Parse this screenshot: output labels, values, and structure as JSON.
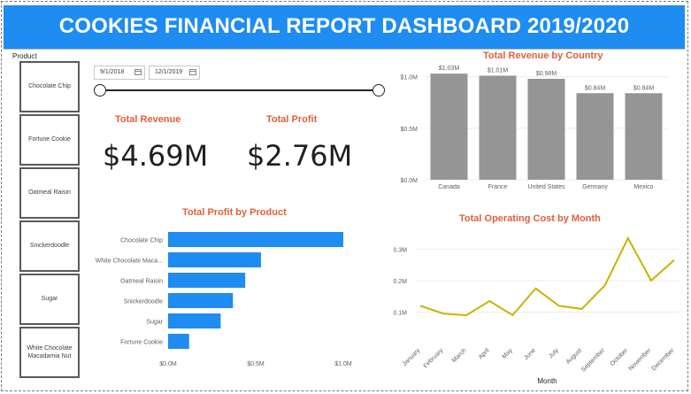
{
  "header": {
    "title": "COOKIES FINANCIAL REPORT DASHBOARD 2019/2020",
    "color": "#1e8cf0"
  },
  "slicer": {
    "title": "Product",
    "items": [
      "Chocolate Chip",
      "Fortune Cookie",
      "Oatmeal Raisin",
      "Snickerdoodle",
      "Sugar",
      "White Chocolate Macadamia Nut"
    ]
  },
  "date_range": {
    "start": "9/1/2018",
    "end": "12/1/2019"
  },
  "kpis": {
    "revenue_label": "Total Revenue",
    "revenue_value": "$4.69M",
    "profit_label": "Total Profit",
    "profit_value": "$2.76M"
  },
  "chart_data": [
    {
      "type": "bar",
      "title": "Total Revenue by Country",
      "categories": [
        "Canada",
        "France",
        "United States",
        "Germany",
        "Mexico"
      ],
      "values": [
        1.03,
        1.01,
        0.98,
        0.84,
        0.84
      ],
      "data_labels": [
        "$1.03M",
        "$1.01M",
        "$0.98M",
        "$0.84M",
        "$0.84M"
      ],
      "yticks": [
        "$0.0M",
        "$0.5M",
        "$1.0M"
      ],
      "ylim": [
        0,
        1.1
      ],
      "color": "#959595"
    },
    {
      "type": "bar",
      "orientation": "horizontal",
      "title": "Total Profit by Product",
      "categories": [
        "Chocolate Chip",
        "White Chocolate Maca...",
        "Oatmeal Raisin",
        "Snickerdoodle",
        "Sugar",
        "Fortune Cookie"
      ],
      "values": [
        1.0,
        0.53,
        0.44,
        0.37,
        0.3,
        0.12
      ],
      "xticks": [
        "$0.0M",
        "$0.5M",
        "$1.0M"
      ],
      "xlim": [
        0,
        1.0
      ],
      "color": "#1e8cf0"
    },
    {
      "type": "line",
      "title": "Total Operating Cost by Month",
      "xlabel": "Month",
      "x": [
        "January",
        "February",
        "March",
        "April",
        "May",
        "June",
        "July",
        "August",
        "September",
        "October",
        "November",
        "December"
      ],
      "values": [
        0.12,
        0.095,
        0.09,
        0.135,
        0.09,
        0.175,
        0.12,
        0.11,
        0.185,
        0.335,
        0.2,
        0.265
      ],
      "yticks": [
        "0.1M",
        "0.2M",
        "0.3M"
      ],
      "ylim": [
        0,
        0.36
      ],
      "color": "#c8b400"
    }
  ]
}
